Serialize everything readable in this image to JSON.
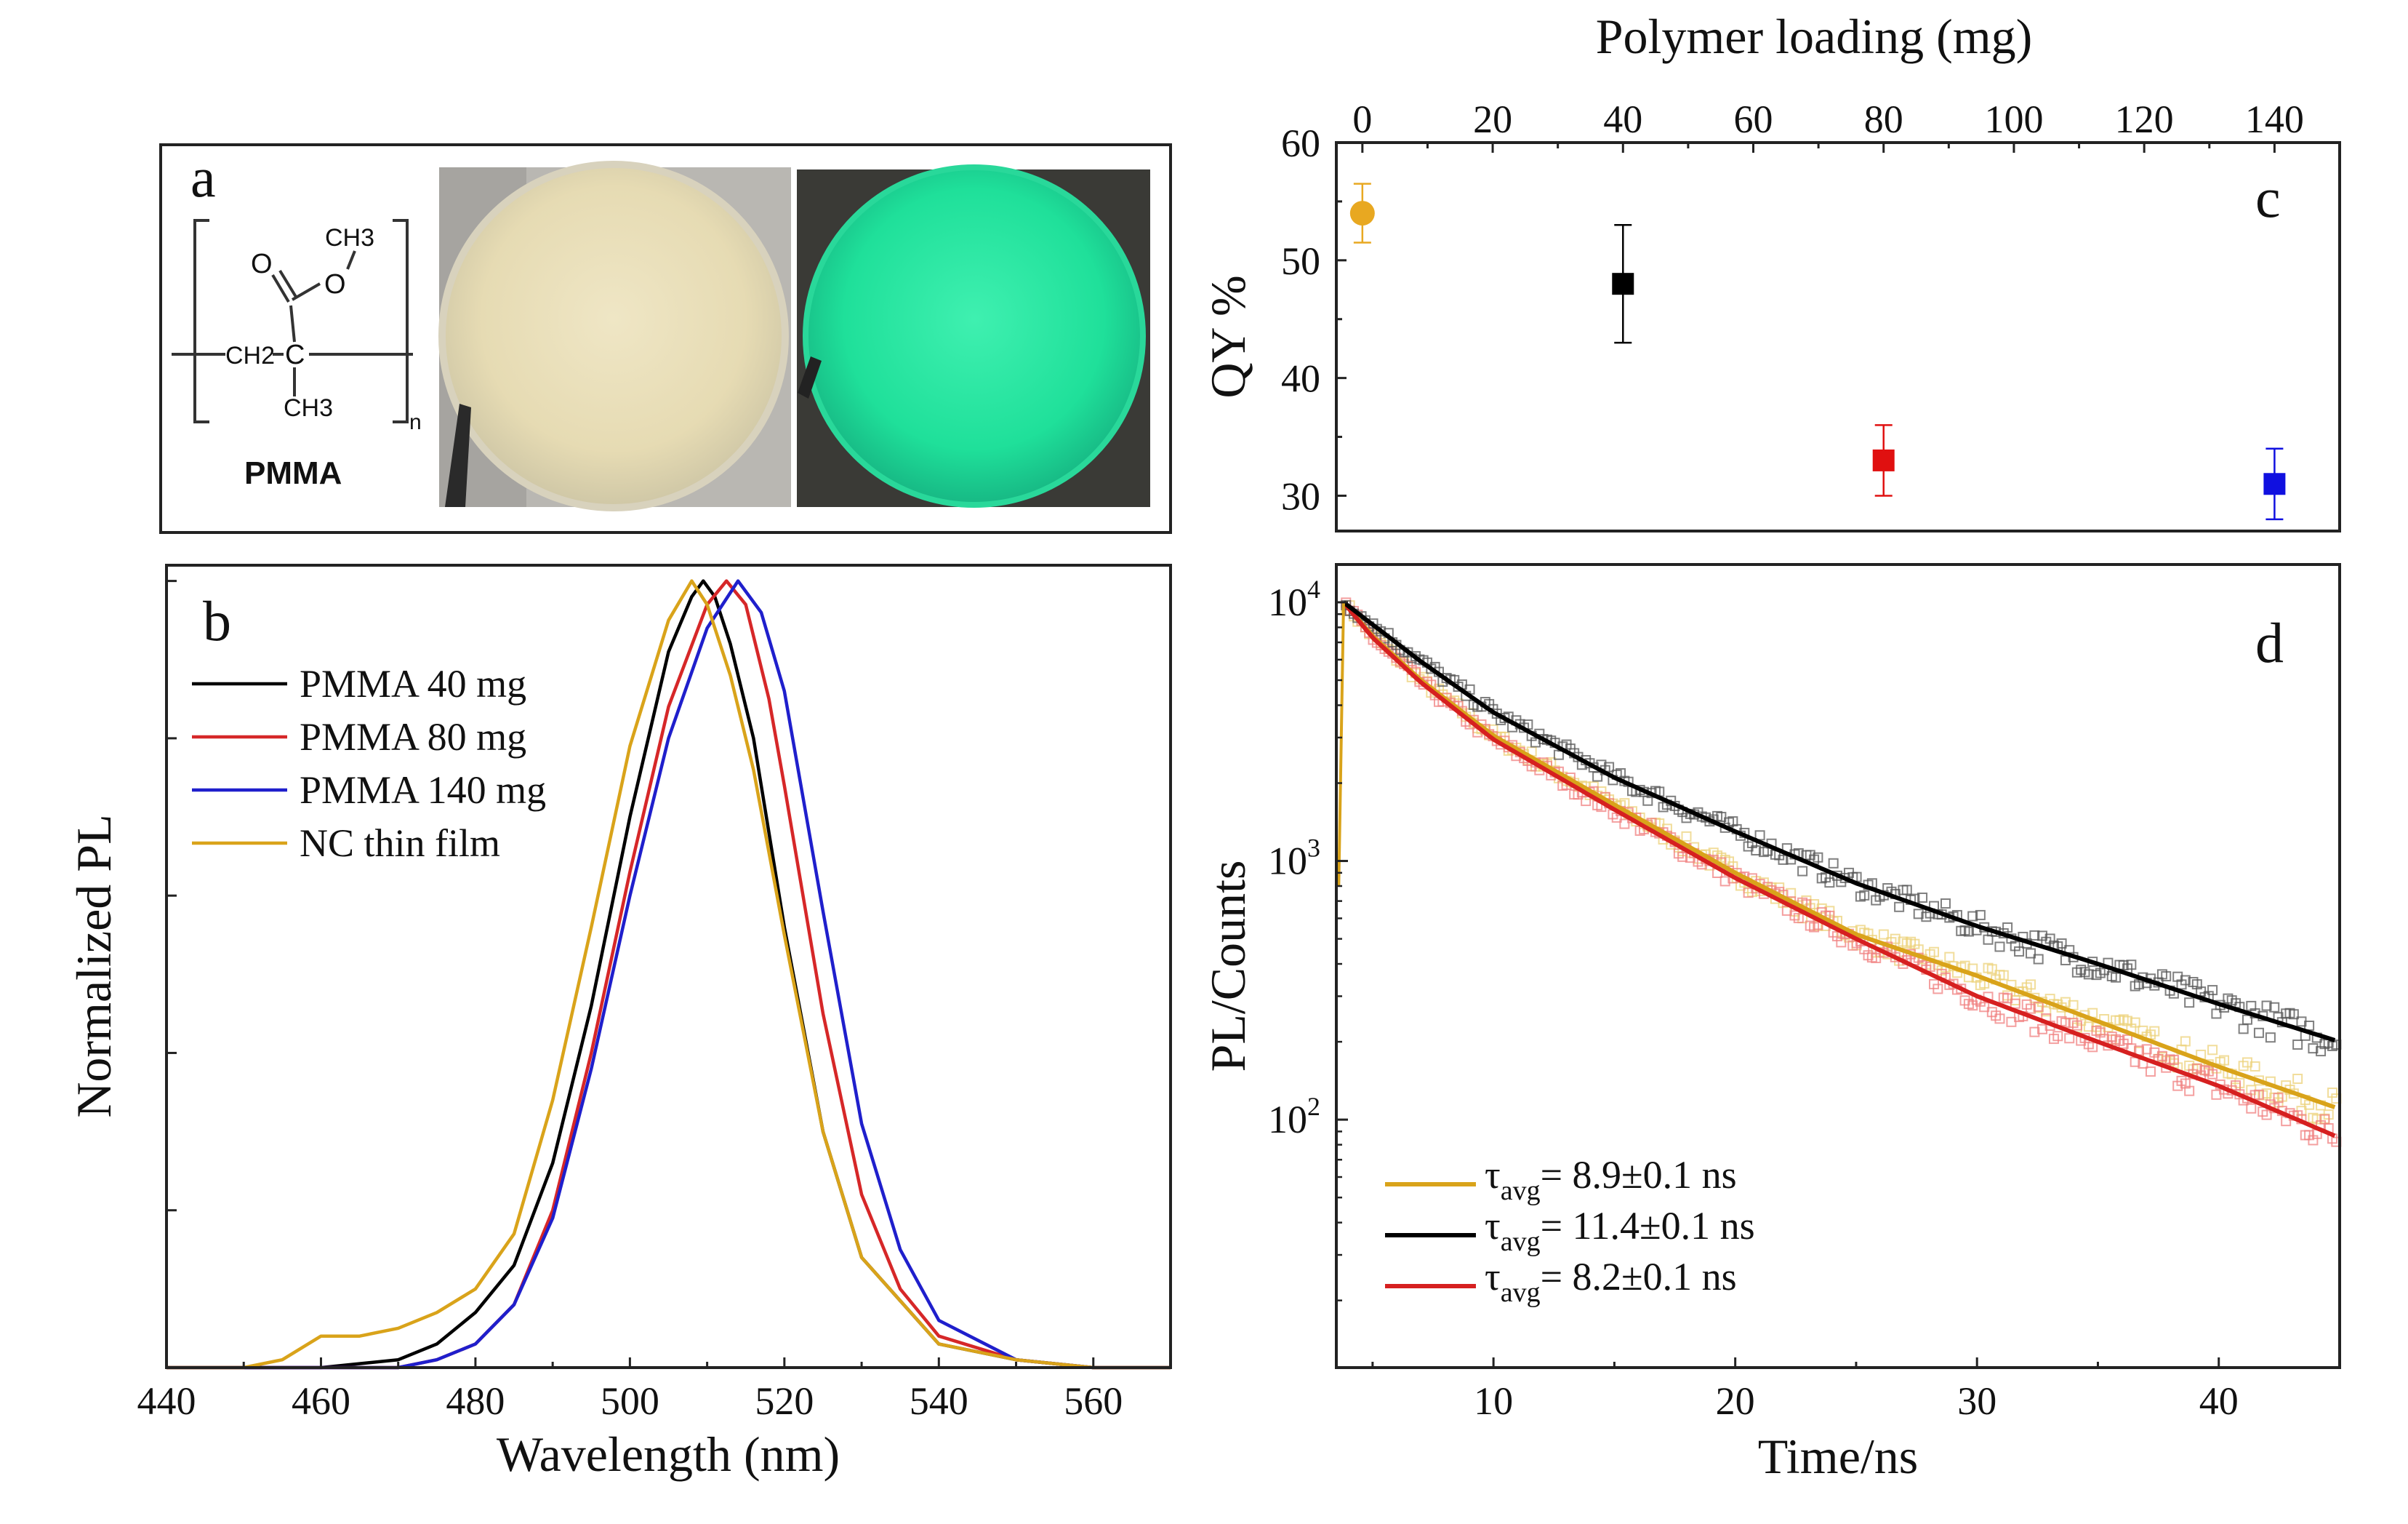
{
  "panel_labels": {
    "a": "a",
    "b": "b",
    "c": "c",
    "d": "d"
  },
  "panel_a": {
    "structure_label": "PMMA",
    "ch3_top": "CH3",
    "ch3_bottom": "CH3",
    "ch2": "CH2",
    "c_atom": "C",
    "o_carbonyl": "O",
    "o_ester": "O",
    "subscript_n": "n",
    "photos": [
      "film-ambient-light",
      "film-uv-illumination"
    ]
  },
  "chart_data": [
    {
      "panel": "b",
      "type": "line",
      "xlabel": "Wavelength (nm)",
      "ylabel": "Normalized PL",
      "xlim": [
        440,
        570
      ],
      "xticks": [
        440,
        460,
        480,
        500,
        520,
        540,
        560
      ],
      "ylim": [
        0,
        1.02
      ],
      "grid": false,
      "legend_position": "top-left",
      "series": [
        {
          "name": "PMMA 40 mg",
          "color": "#000000",
          "peak": 509.5,
          "fwhm": 22.0,
          "x": [
            440,
            460,
            470,
            475,
            480,
            485,
            490,
            495,
            500,
            505,
            508,
            509.5,
            511,
            513,
            516,
            520,
            525,
            530,
            540,
            550,
            560,
            570
          ],
          "y": [
            0,
            0,
            0.01,
            0.03,
            0.07,
            0.13,
            0.26,
            0.46,
            0.7,
            0.91,
            0.98,
            1.0,
            0.98,
            0.92,
            0.8,
            0.56,
            0.3,
            0.14,
            0.03,
            0.01,
            0,
            0
          ]
        },
        {
          "name": "PMMA 80 mg",
          "color": "#d62728",
          "peak": 512.5,
          "fwhm": 23.5,
          "x": [
            440,
            460,
            470,
            475,
            480,
            485,
            490,
            495,
            500,
            505,
            510,
            512.5,
            515,
            518,
            520,
            525,
            530,
            535,
            540,
            550,
            560,
            570
          ],
          "y": [
            0,
            0,
            0,
            0.01,
            0.03,
            0.08,
            0.2,
            0.4,
            0.63,
            0.84,
            0.97,
            1.0,
            0.97,
            0.85,
            0.74,
            0.45,
            0.22,
            0.1,
            0.04,
            0.01,
            0,
            0
          ]
        },
        {
          "name": "PMMA 140 mg",
          "color": "#1f1fcc",
          "peak": 514.0,
          "fwhm": 24.0,
          "x": [
            440,
            460,
            470,
            475,
            480,
            485,
            490,
            495,
            500,
            505,
            510,
            514,
            517,
            520,
            525,
            530,
            535,
            540,
            550,
            560,
            570
          ],
          "y": [
            0,
            0,
            0,
            0.01,
            0.03,
            0.08,
            0.19,
            0.38,
            0.6,
            0.8,
            0.94,
            1.0,
            0.96,
            0.86,
            0.58,
            0.31,
            0.15,
            0.06,
            0.01,
            0,
            0
          ]
        },
        {
          "name": "NC thin film",
          "color": "#d9a31a",
          "peak": 508.0,
          "fwhm": 24.0,
          "x": [
            440,
            450,
            455,
            460,
            465,
            470,
            475,
            480,
            485,
            490,
            495,
            500,
            505,
            508,
            510,
            513,
            516,
            520,
            525,
            530,
            540,
            550,
            560,
            570
          ],
          "y": [
            0,
            0,
            0.01,
            0.04,
            0.04,
            0.05,
            0.07,
            0.1,
            0.17,
            0.34,
            0.56,
            0.79,
            0.95,
            1.0,
            0.97,
            0.88,
            0.76,
            0.55,
            0.3,
            0.14,
            0.03,
            0.01,
            0,
            0
          ]
        }
      ]
    },
    {
      "panel": "c",
      "type": "scatter",
      "xlabel": "Polymer loading (mg)",
      "ylabel": "QY %",
      "xlim": [
        -4,
        150
      ],
      "ylim": [
        27,
        60
      ],
      "xticks": [
        0,
        20,
        40,
        60,
        80,
        100,
        120,
        140
      ],
      "yticks": [
        30,
        40,
        50,
        60
      ],
      "x_axis_position": "top",
      "grid": false,
      "points": [
        {
          "x": 0,
          "y": 54,
          "err": 2.5,
          "marker": "circle",
          "color": "#e8a821"
        },
        {
          "x": 40,
          "y": 48,
          "err": 5,
          "marker": "square",
          "color": "#000000"
        },
        {
          "x": 80,
          "y": 33,
          "err": 3,
          "marker": "square",
          "color": "#e01010"
        },
        {
          "x": 140,
          "y": 31,
          "err": 3,
          "marker": "square",
          "color": "#1010e0"
        }
      ]
    },
    {
      "panel": "d",
      "type": "line",
      "xlabel": "Time/ns",
      "ylabel": "PL/Counts",
      "xlim": [
        3.5,
        45
      ],
      "ylim": [
        11,
        14000
      ],
      "yscale": "log",
      "xticks": [
        10,
        20,
        30,
        40
      ],
      "yticks": [
        100,
        1000,
        10000
      ],
      "ytick_labels": {
        "base": "10",
        "exponents": [
          "2",
          "3",
          "4"
        ]
      },
      "grid": false,
      "legend_position": "bottom-left",
      "series": [
        {
          "name": "τavg= 8.9±0.1 ns",
          "tau_label": {
            "tau": "τ",
            "sub": "avg",
            "rest": "= 8.9±0.1 ns"
          },
          "color": "#d9a31a",
          "x": [
            3.8,
            5,
            7,
            10,
            15,
            20,
            25,
            30,
            35,
            40,
            45
          ],
          "y": [
            10000,
            7400,
            5000,
            3050,
            1650,
            900,
            520,
            360,
            240,
            160,
            110
          ]
        },
        {
          "name": "τavg= 11.4±0.1 ns",
          "tau_label": {
            "tau": "τ",
            "sub": "avg",
            "rest": "= 11.4±0.1 ns"
          },
          "color": "#000000",
          "x": [
            3.8,
            5,
            7,
            10,
            15,
            20,
            25,
            30,
            35,
            40,
            45
          ],
          "y": [
            10000,
            8200,
            5900,
            3750,
            2100,
            1300,
            820,
            560,
            400,
            280,
            200
          ]
        },
        {
          "name": "τavg= 8.2±0.1 ns",
          "tau_label": {
            "tau": "τ",
            "sub": "avg",
            "rest": "= 8.2±0.1 ns"
          },
          "color": "#d62020",
          "x": [
            3.8,
            5,
            7,
            10,
            15,
            20,
            25,
            30,
            35,
            40,
            45
          ],
          "y": [
            10000,
            7300,
            4900,
            2950,
            1580,
            860,
            500,
            300,
            200,
            135,
            85
          ]
        }
      ]
    }
  ]
}
